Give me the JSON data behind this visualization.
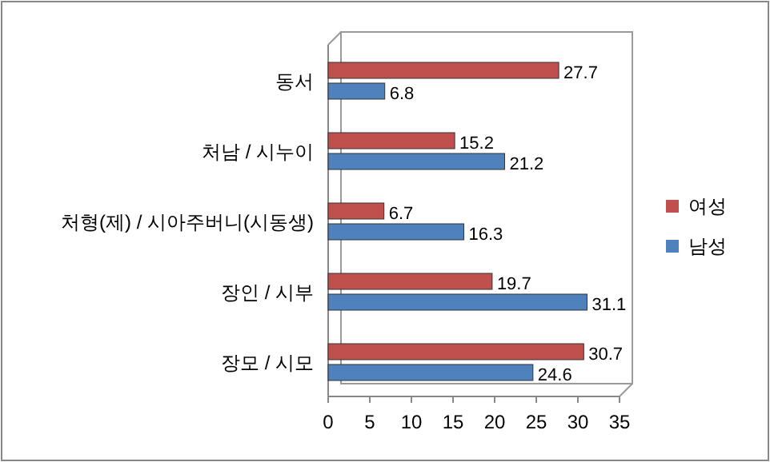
{
  "chart_data": {
    "type": "bar",
    "orientation": "horizontal",
    "categories": [
      "동서",
      "처남 / 시누이",
      "처형(제) / 시아주버니(시동생)",
      "장인 / 시부",
      "장모 / 시모"
    ],
    "series": [
      {
        "name": "여성",
        "color": "#c0504d",
        "values": [
          27.7,
          15.2,
          6.7,
          19.7,
          30.7
        ]
      },
      {
        "name": "남성",
        "color": "#4f81bd",
        "values": [
          6.8,
          21.2,
          16.3,
          31.1,
          24.6
        ]
      }
    ],
    "xlim": [
      0,
      35
    ],
    "xticks": [
      0,
      5,
      10,
      15,
      20,
      25,
      30,
      35
    ],
    "data_labels": true,
    "legend": "right",
    "grid": false
  }
}
